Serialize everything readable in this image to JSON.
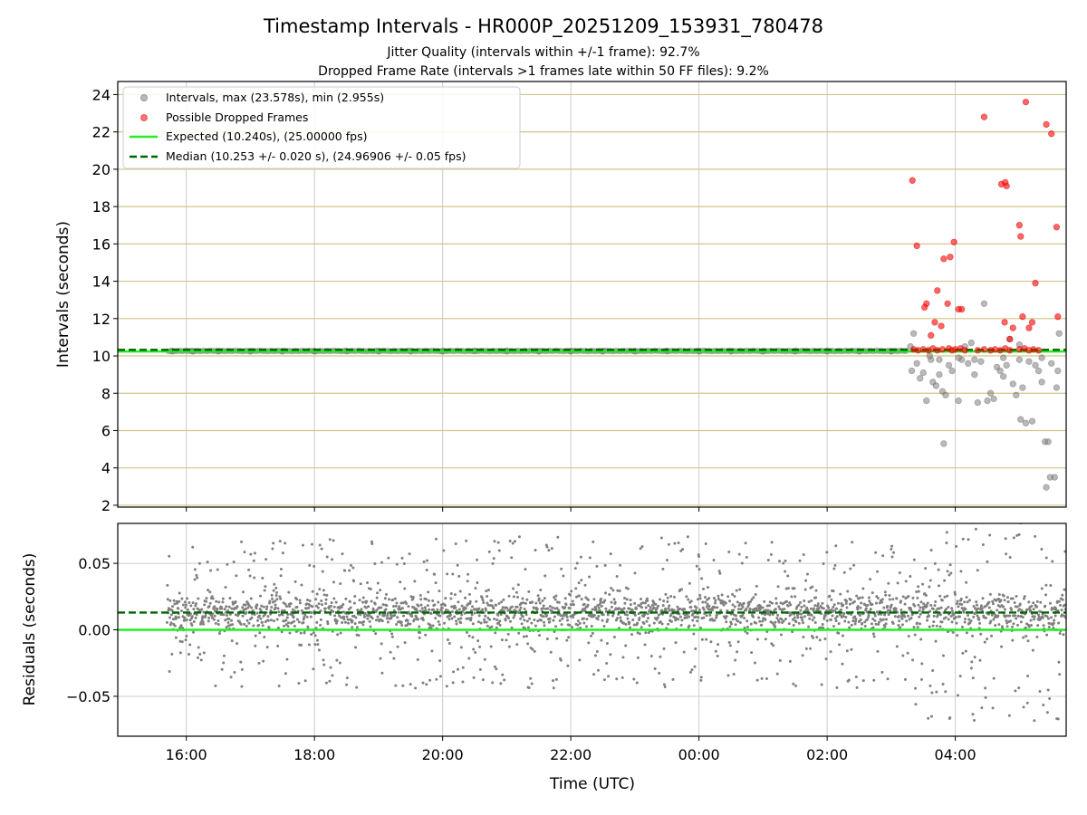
{
  "chart_data": [
    {
      "type": "scatter",
      "panel": "intervals",
      "title": "Timestamp Intervals - HR000P_20251209_153931_780478",
      "subtitles": [
        "Jitter Quality (intervals within +/-1 frame): 92.7%",
        "Dropped Frame Rate (intervals >1 frames late within 50 FF files): 9.2%"
      ],
      "ylabel": "Intervals (seconds)",
      "xlabel": "",
      "x_unit": "hours_since_midnight_2025-12-09_UTC",
      "xlim": [
        14.93,
        29.73
      ],
      "ylim": [
        1.9,
        24.7
      ],
      "yticks": [
        2,
        4,
        6,
        8,
        10,
        12,
        14,
        16,
        18,
        20,
        22,
        24
      ],
      "xticks": [
        16,
        18,
        20,
        22,
        24,
        26,
        28
      ],
      "xtick_labels": [
        "16:00",
        "18:00",
        "20:00",
        "22:00",
        "00:00",
        "02:00",
        "04:00"
      ],
      "grid": true,
      "legend_position": "top-left",
      "legend": [
        "Intervals, max (23.578s), min (2.955s)",
        "Possible Dropped Frames",
        "Expected (10.240s), (25.00000 fps)",
        "Median (10.253 +/- 0.020 s), (24.96906 +/- 0.05 fps)"
      ],
      "expected_interval": 10.24,
      "median_interval": 10.253,
      "series": [
        {
          "name": "Intervals, max (23.578s), min (2.955s)",
          "color": "#808080",
          "points": [
            [
              15.78,
              10.25
            ],
            [
              16.1,
              10.25
            ],
            [
              16.5,
              10.26
            ],
            [
              17.0,
              10.25
            ],
            [
              17.5,
              10.25
            ],
            [
              18.0,
              10.25
            ],
            [
              18.5,
              10.26
            ],
            [
              19.0,
              10.25
            ],
            [
              19.5,
              10.25
            ],
            [
              20.0,
              10.25
            ],
            [
              20.5,
              10.26
            ],
            [
              21.0,
              10.25
            ],
            [
              21.5,
              10.25
            ],
            [
              22.0,
              10.25
            ],
            [
              22.5,
              10.25
            ],
            [
              23.0,
              10.25
            ],
            [
              23.5,
              10.26
            ],
            [
              24.0,
              10.25
            ],
            [
              24.5,
              10.25
            ],
            [
              25.0,
              10.25
            ],
            [
              25.5,
              10.25
            ],
            [
              26.0,
              10.25
            ],
            [
              26.5,
              10.25
            ],
            [
              27.0,
              10.25
            ],
            [
              27.3,
              10.5
            ],
            [
              27.32,
              9.2
            ],
            [
              27.35,
              11.2
            ],
            [
              27.4,
              9.6
            ],
            [
              27.45,
              8.8
            ],
            [
              27.5,
              9.1
            ],
            [
              27.55,
              7.6
            ],
            [
              27.62,
              9.8
            ],
            [
              27.65,
              8.6
            ],
            [
              27.7,
              8.4
            ],
            [
              27.75,
              9.0
            ],
            [
              27.8,
              8.1
            ],
            [
              27.82,
              5.3
            ],
            [
              27.85,
              7.9
            ],
            [
              27.9,
              9.5
            ],
            [
              27.95,
              9.2
            ],
            [
              28.05,
              7.6
            ],
            [
              28.1,
              9.8
            ],
            [
              28.15,
              10.5
            ],
            [
              28.2,
              9.6
            ],
            [
              28.25,
              10.7
            ],
            [
              28.3,
              9.0
            ],
            [
              28.35,
              7.5
            ],
            [
              28.4,
              9.7
            ],
            [
              28.45,
              12.8
            ],
            [
              28.5,
              7.6
            ],
            [
              28.55,
              8.0
            ],
            [
              28.6,
              7.7
            ],
            [
              28.65,
              9.4
            ],
            [
              28.7,
              9.2
            ],
            [
              28.75,
              8.9
            ],
            [
              28.8,
              9.5
            ],
            [
              28.85,
              10.9
            ],
            [
              28.9,
              8.5
            ],
            [
              28.95,
              7.9
            ],
            [
              29.0,
              10.6
            ],
            [
              29.02,
              6.6
            ],
            [
              29.05,
              8.3
            ],
            [
              29.1,
              6.4
            ],
            [
              29.15,
              9.7
            ],
            [
              29.2,
              6.5
            ],
            [
              29.25,
              9.5
            ],
            [
              29.3,
              9.2
            ],
            [
              29.35,
              8.6
            ],
            [
              29.4,
              5.4
            ],
            [
              29.45,
              5.4
            ],
            [
              29.48,
              3.5
            ],
            [
              29.55,
              3.5
            ],
            [
              29.42,
              2.96
            ],
            [
              29.58,
              8.3
            ],
            [
              29.6,
              9.2
            ],
            [
              29.62,
              11.2
            ],
            [
              29.5,
              9.6
            ],
            [
              29.35,
              9.9
            ],
            [
              29.0,
              9.8
            ],
            [
              28.75,
              9.9
            ],
            [
              28.3,
              9.8
            ],
            [
              28.05,
              9.9
            ],
            [
              27.75,
              9.8
            ],
            [
              27.6,
              10.0
            ]
          ]
        },
        {
          "name": "Possible Dropped Frames",
          "color": "#ff0000",
          "points": [
            [
              27.33,
              19.4
            ],
            [
              27.4,
              15.9
            ],
            [
              27.55,
              12.8
            ],
            [
              27.52,
              12.6
            ],
            [
              27.68,
              11.8
            ],
            [
              27.72,
              13.5
            ],
            [
              27.62,
              11.1
            ],
            [
              27.78,
              11.6
            ],
            [
              27.82,
              15.2
            ],
            [
              27.88,
              12.8
            ],
            [
              27.92,
              15.3
            ],
            [
              27.98,
              16.1
            ],
            [
              28.05,
              12.5
            ],
            [
              28.1,
              12.5
            ],
            [
              28.45,
              22.8
            ],
            [
              28.72,
              19.2
            ],
            [
              28.78,
              19.3
            ],
            [
              28.8,
              19.1
            ],
            [
              28.77,
              11.8
            ],
            [
              28.85,
              10.9
            ],
            [
              28.9,
              11.5
            ],
            [
              29.0,
              17.0
            ],
            [
              29.02,
              16.4
            ],
            [
              29.05,
              12.1
            ],
            [
              29.15,
              11.5
            ],
            [
              29.25,
              13.9
            ],
            [
              29.42,
              22.4
            ],
            [
              29.5,
              21.9
            ],
            [
              29.58,
              16.9
            ],
            [
              29.6,
              12.1
            ],
            [
              29.1,
              23.6
            ],
            [
              29.2,
              11.8
            ],
            [
              27.35,
              10.35
            ],
            [
              27.42,
              10.3
            ],
            [
              27.5,
              10.35
            ],
            [
              27.58,
              10.3
            ],
            [
              27.65,
              10.4
            ],
            [
              27.72,
              10.3
            ],
            [
              27.8,
              10.35
            ],
            [
              27.9,
              10.4
            ],
            [
              27.95,
              10.3
            ],
            [
              28.0,
              10.35
            ],
            [
              28.08,
              10.4
            ],
            [
              28.15,
              10.3
            ],
            [
              28.35,
              10.3
            ],
            [
              28.45,
              10.35
            ],
            [
              28.55,
              10.3
            ],
            [
              28.62,
              10.35
            ],
            [
              28.7,
              10.3
            ],
            [
              28.78,
              10.4
            ],
            [
              28.85,
              10.3
            ],
            [
              29.0,
              10.35
            ],
            [
              29.08,
              10.4
            ],
            [
              29.15,
              10.3
            ],
            [
              29.22,
              10.35
            ],
            [
              29.3,
              10.3
            ]
          ]
        }
      ]
    },
    {
      "type": "scatter",
      "panel": "residuals",
      "ylabel": "Residuals (seconds)",
      "xlabel": "Time (UTC)",
      "x_unit": "hours_since_midnight_2025-12-09_UTC",
      "xlim": [
        14.93,
        29.73
      ],
      "ylim": [
        -0.08,
        0.08
      ],
      "yticks": [
        -0.05,
        0.0,
        0.05
      ],
      "ytick_labels": [
        "−0.05",
        "0.00",
        "0.05"
      ],
      "xticks": [
        16,
        18,
        20,
        22,
        24,
        26,
        28
      ],
      "xtick_labels": [
        "16:00",
        "18:00",
        "20:00",
        "22:00",
        "00:00",
        "02:00",
        "04:00"
      ],
      "grid": true,
      "expected_residual": 0.0,
      "median_residual": 0.013,
      "residual_band": {
        "x_start": 15.7,
        "x_end": 29.73,
        "point_count": 2600,
        "center": 0.013,
        "core_spread": 0.012,
        "outlier_spread": 0.06,
        "color": "#808080"
      }
    }
  ],
  "colors": {
    "expected_line": "#22ee22",
    "median_line": "#006400",
    "interval_point": "#808080",
    "dropped_point": "#ff0000",
    "top_grid": "#d4c48a",
    "grid": "#cccccc"
  }
}
